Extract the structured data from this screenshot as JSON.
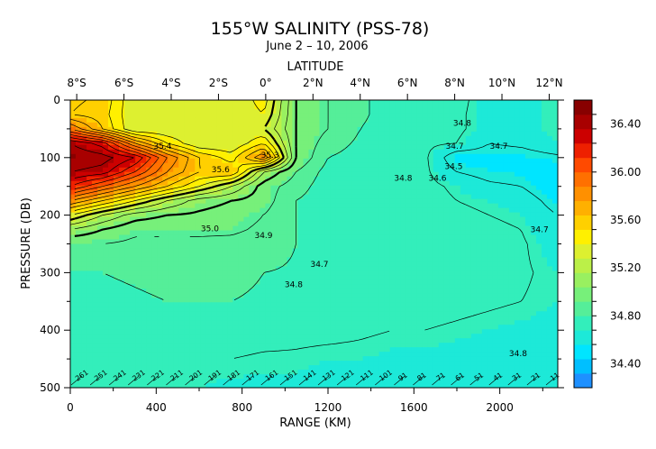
{
  "chart_data": {
    "type": "heatmap",
    "title": "155°W SALINITY (PSS-78)",
    "subtitle": "June 2 – 10, 2006",
    "top_axis_label": "LATITUDE",
    "xlabel": "RANGE (KM)",
    "ylabel": "PRESSURE (DB)",
    "xlim": [
      0,
      2270
    ],
    "ylim": [
      0,
      500
    ],
    "y_inverted": true,
    "x_ticks": [
      0,
      400,
      800,
      1200,
      1600,
      2000
    ],
    "y_ticks": [
      0,
      100,
      200,
      300,
      400,
      500
    ],
    "latitude_ticks": [
      {
        "label": "8°S",
        "km": 30
      },
      {
        "label": "6°S",
        "km": 250
      },
      {
        "label": "4°S",
        "km": 470
      },
      {
        "label": "2°S",
        "km": 690
      },
      {
        "label": "0°",
        "km": 910
      },
      {
        "label": "2°N",
        "km": 1130
      },
      {
        "label": "4°N",
        "km": 1350
      },
      {
        "label": "6°N",
        "km": 1570
      },
      {
        "label": "8°N",
        "km": 1790
      },
      {
        "label": "10°N",
        "km": 2010
      },
      {
        "label": "12°N",
        "km": 2230
      }
    ],
    "colorbar": {
      "min": 34.2,
      "max": 36.6,
      "tick_labels": [
        "34.40",
        "34.80",
        "35.20",
        "35.60",
        "36.00",
        "36.40"
      ],
      "tick_values": [
        34.4,
        34.8,
        35.2,
        35.6,
        36.0,
        36.4
      ],
      "colors": [
        "#1e90ff",
        "#00bfff",
        "#00e5ff",
        "#1de9d8",
        "#33eebb",
        "#55ee99",
        "#77f07a",
        "#99f060",
        "#bbf048",
        "#ddf030",
        "#fff000",
        "#ffd000",
        "#ffb000",
        "#ff9000",
        "#ff7000",
        "#ff4a00",
        "#ee2000",
        "#cc0000",
        "#a80000",
        "#880000"
      ]
    },
    "contour_labels": [
      {
        "text": "35.4",
        "km": 430,
        "db": 85
      },
      {
        "text": "35.6",
        "km": 700,
        "db": 125
      },
      {
        "text": "35.3",
        "km": 930,
        "db": 100
      },
      {
        "text": "35.0",
        "km": 650,
        "db": 228
      },
      {
        "text": "34.9",
        "km": 900,
        "db": 240
      },
      {
        "text": "34.8",
        "km": 1040,
        "db": 325
      },
      {
        "text": "34.7",
        "km": 1160,
        "db": 290
      },
      {
        "text": "34.8",
        "km": 1550,
        "db": 140
      },
      {
        "text": "34.7",
        "km": 1790,
        "db": 85
      },
      {
        "text": "34.5",
        "km": 1785,
        "db": 120
      },
      {
        "text": "34.6",
        "km": 1710,
        "db": 140
      },
      {
        "text": "34.7",
        "km": 1995,
        "db": 85
      },
      {
        "text": "34.7",
        "km": 2185,
        "db": 230
      },
      {
        "text": "34.8",
        "km": 2085,
        "db": 445
      },
      {
        "text": "34.8",
        "km": 1825,
        "db": 45
      }
    ],
    "depth_annotations": [
      "261",
      "251",
      "241",
      "231",
      "221",
      "211",
      "201",
      "191",
      "181",
      "171",
      "161",
      "151",
      "141",
      "131",
      "121",
      "111",
      "101",
      "91",
      "81",
      "71",
      "61",
      "51",
      "41",
      "31",
      "21",
      "11"
    ],
    "salinity_field": {
      "x_km": [
        0,
        150,
        300,
        450,
        600,
        750,
        900,
        1050,
        1200,
        1350,
        1500,
        1650,
        1800,
        1950,
        2100,
        2270
      ],
      "pressure_db": [
        0,
        25,
        50,
        75,
        100,
        125,
        150,
        175,
        200,
        225,
        250,
        300,
        350,
        400,
        450,
        500
      ],
      "values": [
        [
          35.62,
          35.58,
          35.3,
          35.3,
          35.3,
          35.3,
          35.45,
          35.0,
          34.9,
          34.82,
          34.75,
          34.72,
          34.73,
          34.65,
          34.66,
          34.7
        ],
        [
          35.6,
          35.55,
          35.3,
          35.3,
          35.3,
          35.3,
          35.4,
          35.0,
          34.9,
          34.82,
          34.75,
          34.72,
          34.72,
          34.65,
          34.65,
          34.7
        ],
        [
          35.9,
          35.6,
          35.3,
          35.3,
          35.3,
          35.3,
          35.3,
          35.0,
          34.9,
          34.8,
          34.75,
          34.72,
          34.72,
          34.65,
          34.65,
          34.7
        ],
        [
          36.4,
          36.25,
          35.8,
          35.5,
          35.3,
          35.3,
          35.5,
          35.0,
          34.85,
          34.78,
          34.74,
          34.72,
          34.7,
          34.6,
          34.62,
          34.68
        ],
        [
          36.5,
          36.45,
          36.3,
          35.9,
          35.6,
          35.45,
          35.8,
          35.0,
          34.8,
          34.76,
          34.74,
          34.72,
          34.52,
          34.55,
          34.55,
          34.58
        ],
        [
          36.4,
          36.35,
          36.1,
          35.8,
          35.6,
          35.6,
          35.1,
          34.9,
          34.76,
          34.74,
          34.73,
          34.72,
          34.6,
          34.56,
          34.55,
          34.5
        ],
        [
          36.2,
          36.0,
          35.8,
          35.6,
          35.4,
          35.2,
          34.95,
          34.85,
          34.74,
          34.73,
          34.73,
          34.73,
          34.68,
          34.62,
          34.6,
          34.5
        ],
        [
          35.8,
          35.6,
          35.4,
          35.2,
          35.05,
          35.0,
          34.95,
          34.8,
          34.74,
          34.74,
          34.74,
          34.74,
          34.7,
          34.68,
          34.66,
          34.55
        ],
        [
          35.4,
          35.2,
          35.05,
          35.0,
          34.98,
          34.95,
          34.9,
          34.8,
          34.75,
          34.75,
          34.75,
          34.74,
          34.72,
          34.7,
          34.68,
          34.6
        ],
        [
          35.1,
          35.0,
          34.92,
          34.92,
          34.92,
          34.92,
          34.88,
          34.8,
          34.76,
          34.76,
          34.75,
          34.74,
          34.73,
          34.72,
          34.7,
          34.62
        ],
        [
          34.9,
          34.9,
          34.88,
          34.88,
          34.88,
          34.87,
          34.85,
          34.8,
          34.77,
          34.76,
          34.75,
          34.74,
          34.73,
          34.72,
          34.71,
          34.65
        ],
        [
          34.8,
          34.8,
          34.81,
          34.82,
          34.82,
          34.82,
          34.8,
          34.79,
          34.77,
          34.76,
          34.75,
          34.74,
          34.73,
          34.72,
          34.71,
          34.68
        ],
        [
          34.77,
          34.78,
          34.79,
          34.8,
          34.8,
          34.8,
          34.79,
          34.77,
          34.76,
          34.75,
          34.74,
          34.73,
          34.72,
          34.71,
          34.7,
          34.68
        ],
        [
          34.73,
          34.74,
          34.74,
          34.74,
          34.74,
          34.74,
          34.73,
          34.72,
          34.72,
          34.71,
          34.7,
          34.7,
          34.69,
          34.68,
          34.67,
          34.66
        ],
        [
          34.7,
          34.7,
          34.7,
          34.7,
          34.7,
          34.7,
          34.69,
          34.69,
          34.68,
          34.68,
          34.67,
          34.67,
          34.66,
          34.65,
          34.65,
          34.64
        ],
        [
          34.68,
          34.68,
          34.68,
          34.68,
          34.68,
          34.67,
          34.67,
          34.67,
          34.66,
          34.66,
          34.65,
          34.65,
          34.64,
          34.64,
          34.63,
          34.62
        ]
      ]
    }
  }
}
